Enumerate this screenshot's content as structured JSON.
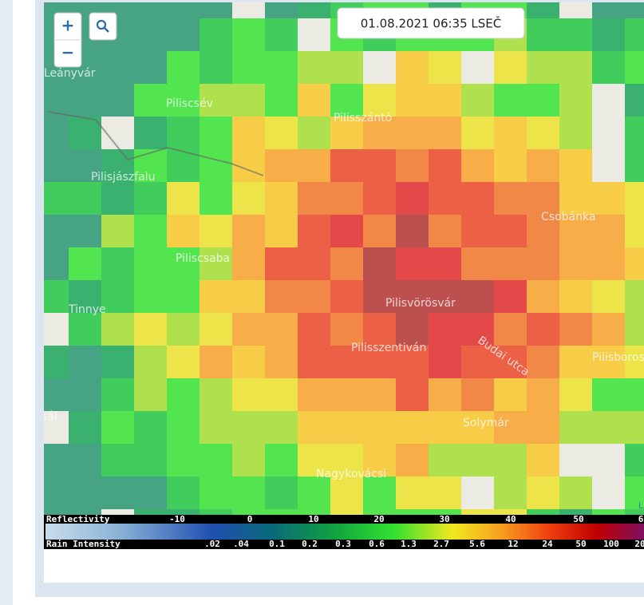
{
  "timestamp": "01.08.2021 06:35 LSEČ",
  "controls": {
    "zoom_in": "+",
    "zoom_out": "−"
  },
  "places": [
    {
      "label": "Leányvár"
    },
    {
      "label": "Piliscsév"
    },
    {
      "label": "Pilisszántó"
    },
    {
      "label": "Pilisjászfalu"
    },
    {
      "label": "Piliscsaba"
    },
    {
      "label": "Csobánka"
    },
    {
      "label": "Tinnye"
    },
    {
      "label": "Pilisvörösvár"
    },
    {
      "label": "Pilisszentiván"
    },
    {
      "label": "Budai utca"
    },
    {
      "label": "Pilisboros"
    },
    {
      "label": "sál"
    },
    {
      "label": "Solymár"
    },
    {
      "label": "Nagykovácsi"
    }
  ],
  "legend": {
    "reflectivity": {
      "title": "Reflectivity",
      "labels": [
        "-10",
        "0",
        "10",
        "20",
        "30",
        "40",
        "50",
        "6"
      ]
    },
    "rain": {
      "title": "Rain Intensity",
      "labels": [
        ".02",
        ".04",
        "0.1",
        "0.2",
        "0.3",
        "0.6",
        "1.3",
        "2.7",
        "5.6",
        "12",
        "24",
        "50",
        "100",
        "20"
      ]
    }
  },
  "attribution": "L"
}
